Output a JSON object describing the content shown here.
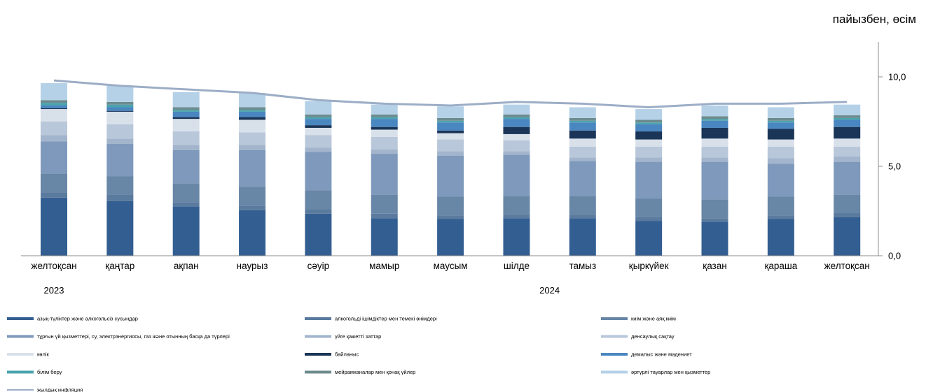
{
  "chart_data": {
    "type": "bar",
    "stacked": true,
    "unit_label": "пайызбен, өсім",
    "categories": [
      "желтоқсан",
      "қаңтар",
      "ақпан",
      "наурыз",
      "сәуір",
      "мамыр",
      "маусым",
      "шілде",
      "тамыз",
      "қыркүйек",
      "қазан",
      "қараша",
      "желтоқсан"
    ],
    "years": [
      {
        "label": "2023",
        "category_index": 0
      },
      {
        "label": "2024",
        "category_index": 7.5
      }
    ],
    "ylim": [
      0,
      12
    ],
    "yticks": [
      {
        "value": 0,
        "label": "0,0"
      },
      {
        "value": 5,
        "label": "5,0"
      },
      {
        "value": 10,
        "label": "10,0"
      }
    ],
    "y_axis_position": "right",
    "grid": false,
    "legend_position": "bottom",
    "series": [
      {
        "name": "азық-түліктер және алкогольсіз сусындар",
        "color": "#335e91",
        "values": [
          3.25,
          3.05,
          2.75,
          2.55,
          2.35,
          2.1,
          2.05,
          2.1,
          2.1,
          1.95,
          1.9,
          2.05,
          2.15
        ]
      },
      {
        "name": "алкогольді ішімдіктер мен темекі өнімдері",
        "color": "#5a7a9e",
        "values": [
          0.3,
          0.35,
          0.25,
          0.25,
          0.25,
          0.25,
          0.2,
          0.2,
          0.2,
          0.2,
          0.2,
          0.2,
          0.25
        ]
      },
      {
        "name": "киім және аяқ киім",
        "color": "#6886a6",
        "values": [
          1.05,
          1.05,
          1.05,
          1.05,
          1.05,
          1.05,
          1.05,
          1.05,
          1.05,
          1.05,
          1.05,
          1.05,
          1.0
        ]
      },
      {
        "name": "тұрғын үй қызметтері, су, электрэнергиясы, газ және отынның басқа да түрлері",
        "color": "#7e99bb",
        "values": [
          1.8,
          1.8,
          1.85,
          2.05,
          2.15,
          2.3,
          2.3,
          2.3,
          1.95,
          2.05,
          2.1,
          1.85,
          1.85
        ]
      },
      {
        "name": "үйге қажетті заттар",
        "color": "#a3b5cc",
        "values": [
          0.35,
          0.3,
          0.3,
          0.3,
          0.25,
          0.25,
          0.25,
          0.2,
          0.2,
          0.25,
          0.25,
          0.3,
          0.3
        ]
      },
      {
        "name": "денсаулық сақтау",
        "color": "#b8c7d9",
        "values": [
          0.75,
          0.8,
          0.75,
          0.7,
          0.7,
          0.7,
          0.65,
          0.6,
          0.6,
          0.6,
          0.6,
          0.65,
          0.55
        ]
      },
      {
        "name": "көлік",
        "color": "#d8e0ea",
        "values": [
          0.7,
          0.7,
          0.7,
          0.7,
          0.4,
          0.4,
          0.35,
          0.35,
          0.45,
          0.4,
          0.45,
          0.4,
          0.45
        ]
      },
      {
        "name": "байланыс",
        "color": "#1a3557",
        "values": [
          0.05,
          0.05,
          0.1,
          0.15,
          0.15,
          0.15,
          0.15,
          0.4,
          0.45,
          0.45,
          0.6,
          0.6,
          0.65
        ]
      },
      {
        "name": "демалыс және мәдениет",
        "color": "#4a86c0",
        "values": [
          0.15,
          0.2,
          0.3,
          0.3,
          0.35,
          0.45,
          0.45,
          0.45,
          0.45,
          0.4,
          0.4,
          0.35,
          0.4
        ]
      },
      {
        "name": "білім беру",
        "color": "#4ba3ad",
        "values": [
          0.15,
          0.15,
          0.1,
          0.1,
          0.1,
          0.1,
          0.1,
          0.1,
          0.1,
          0.1,
          0.1,
          0.1,
          0.1
        ]
      },
      {
        "name": "мейрамханалар мен қонақ үйлер",
        "color": "#6c8b8e",
        "values": [
          0.15,
          0.15,
          0.15,
          0.15,
          0.15,
          0.15,
          0.15,
          0.15,
          0.15,
          0.15,
          0.15,
          0.15,
          0.15
        ]
      },
      {
        "name": "әртүрлі тауарлар мен қызметтер",
        "color": "#b5d1e8",
        "values": [
          0.95,
          0.9,
          0.85,
          0.8,
          0.75,
          0.55,
          0.65,
          0.55,
          0.6,
          0.6,
          0.6,
          0.6,
          0.6
        ]
      }
    ],
    "line": {
      "name": "жылдық инфляция",
      "color": "#9cadc6",
      "values": [
        9.8,
        9.5,
        9.3,
        9.1,
        8.7,
        8.5,
        8.4,
        8.6,
        8.5,
        8.3,
        8.5,
        8.5,
        8.6
      ]
    }
  }
}
